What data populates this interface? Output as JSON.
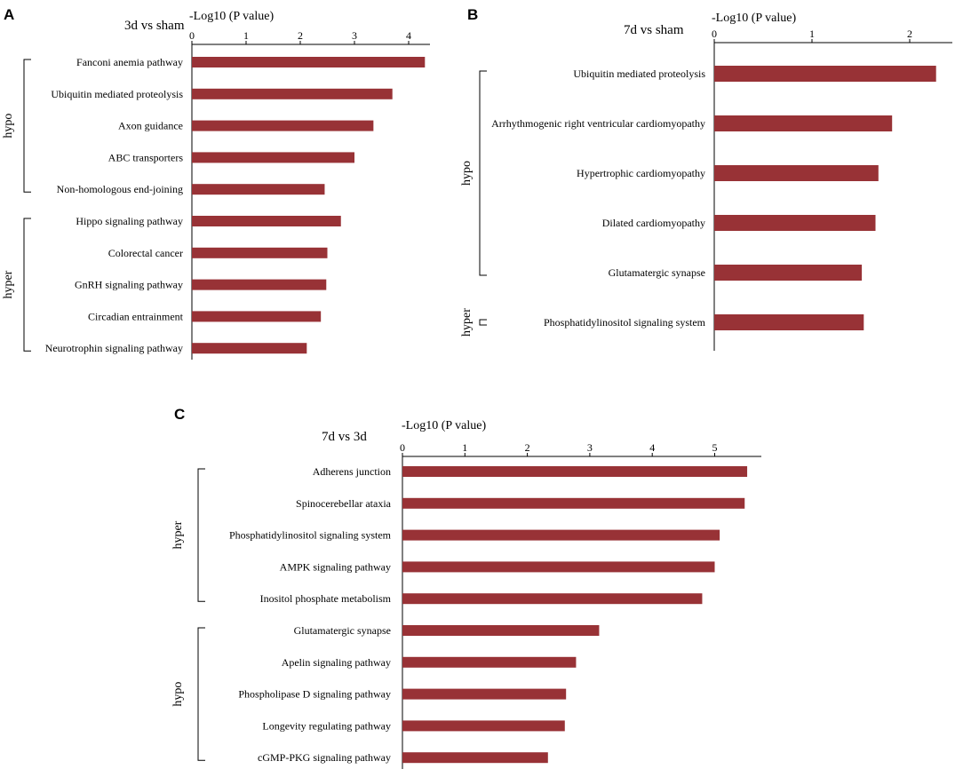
{
  "chart_data": [
    {
      "type": "bar",
      "orientation": "horizontal",
      "panel": "A",
      "title": "3d vs sham",
      "xlabel": "-Log10 (P value)",
      "xlim": [
        0,
        4.4
      ],
      "xticks": [
        0,
        1,
        2,
        3,
        4
      ],
      "bar_color": "#983236",
      "categories": [
        "Fanconi anemia pathway",
        "Ubiquitin mediated proteolysis",
        "Axon guidance",
        "ABC transporters",
        "Non-homologous end-joining",
        "Hippo signaling pathway",
        "Colorectal cancer",
        "GnRH signaling pathway",
        "Circadian entrainment",
        "Neurotrophin signaling pathway"
      ],
      "values": [
        4.3,
        3.7,
        3.35,
        3.0,
        2.45,
        2.75,
        2.5,
        2.48,
        2.38,
        2.12
      ],
      "groups": [
        {
          "label": "hypo",
          "start": 0,
          "end": 4
        },
        {
          "label": "hyper",
          "start": 5,
          "end": 9
        }
      ]
    },
    {
      "type": "bar",
      "orientation": "horizontal",
      "panel": "B",
      "title": "7d vs sham",
      "xlabel": "-Log10 (P value)",
      "xlim": [
        0,
        2.45
      ],
      "xticks": [
        0,
        1,
        2
      ],
      "bar_color": "#983236",
      "categories": [
        "Ubiquitin mediated proteolysis",
        "Arrhythmogenic right ventricular cardiomyopathy",
        "Hypertrophic cardiomyopathy",
        "Dilated cardiomyopathy",
        "Glutamatergic synapse",
        "Phosphatidylinositol signaling system"
      ],
      "values": [
        2.27,
        1.82,
        1.68,
        1.65,
        1.51,
        1.53
      ],
      "groups": [
        {
          "label": "hypo",
          "start": 0,
          "end": 4
        },
        {
          "label": "hyper",
          "start": 5,
          "end": 5
        }
      ]
    },
    {
      "type": "bar",
      "orientation": "horizontal",
      "panel": "C",
      "title": "7d vs 3d",
      "xlabel": "-Log10 (P value)",
      "xlim": [
        0,
        5.8
      ],
      "xticks": [
        0,
        1,
        2,
        3,
        4,
        5
      ],
      "bar_color": "#983236",
      "categories": [
        "Adherens junction",
        "Spinocerebellar ataxia",
        "Phosphatidylinositol signaling system",
        "AMPK signaling pathway",
        "Inositol phosphate metabolism",
        "Glutamatergic synapse",
        "Apelin signaling pathway",
        "Phospholipase D signaling pathway",
        "Longevity regulating pathway",
        "cGMP-PKG signaling pathway"
      ],
      "values": [
        5.52,
        5.48,
        5.08,
        5.0,
        4.8,
        3.15,
        2.78,
        2.62,
        2.6,
        2.33
      ],
      "groups": [
        {
          "label": "hyper",
          "start": 0,
          "end": 4
        },
        {
          "label": "hypo",
          "start": 5,
          "end": 9
        }
      ]
    }
  ]
}
